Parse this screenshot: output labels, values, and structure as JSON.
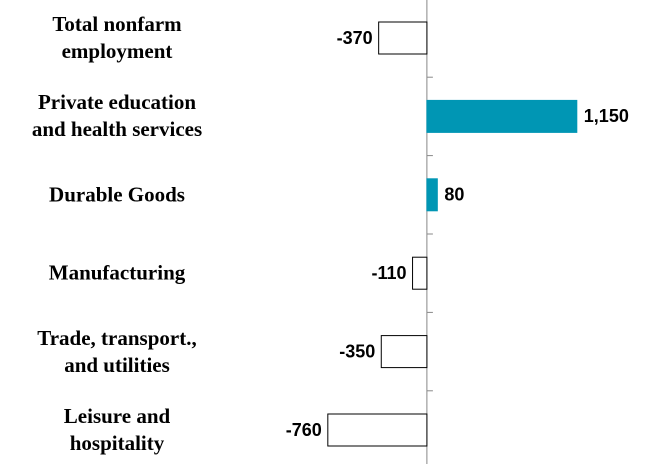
{
  "chart_data": {
    "type": "hbar",
    "categories": [
      "Total nonfarm\nemployment",
      "Private education\nand health services",
      "Durable Goods",
      "Manufacturing",
      "Trade, transport.,\nand utilities",
      "Leisure and\nhospitality"
    ],
    "values": [
      -370,
      1150,
      80,
      -110,
      -350,
      -760
    ],
    "value_labels": [
      "-370",
      "1,150",
      "80",
      "-110",
      "-350",
      "-760"
    ],
    "color": "#0096b4",
    "negative_color": "#ffffff",
    "xlim": [
      -1100,
      1700
    ]
  }
}
